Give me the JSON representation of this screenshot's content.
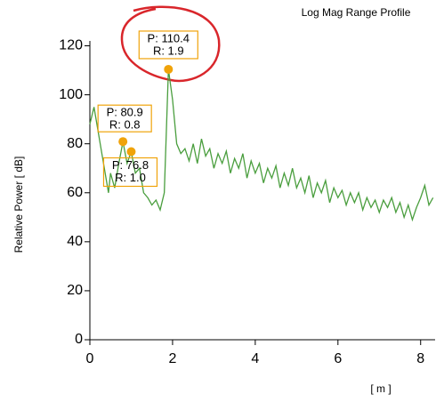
{
  "chart_data": {
    "type": "line",
    "title": "Log Mag Range Profile",
    "y_label": "Relative Power [ dB]",
    "x_label": "[ m ]",
    "xlim": [
      0,
      8.35
    ],
    "ylim": [
      0,
      122
    ],
    "xticks": [
      0,
      2,
      4,
      6,
      8
    ],
    "yticks": [
      0,
      20,
      40,
      60,
      80,
      100,
      120
    ],
    "series": [
      {
        "color": "#4a9e3e",
        "x": [
          0.0,
          0.1,
          0.2,
          0.3,
          0.4,
          0.45,
          0.5,
          0.6,
          0.7,
          0.8,
          0.9,
          1.0,
          1.1,
          1.2,
          1.3,
          1.4,
          1.5,
          1.6,
          1.7,
          1.8,
          1.9,
          2.0,
          2.1,
          2.2,
          2.3,
          2.4,
          2.5,
          2.6,
          2.7,
          2.8,
          2.9,
          3.0,
          3.1,
          3.2,
          3.3,
          3.4,
          3.5,
          3.6,
          3.7,
          3.8,
          3.9,
          4.0,
          4.1,
          4.2,
          4.3,
          4.4,
          4.5,
          4.6,
          4.7,
          4.8,
          4.9,
          5.0,
          5.1,
          5.2,
          5.3,
          5.4,
          5.5,
          5.6,
          5.7,
          5.8,
          5.9,
          6.0,
          6.1,
          6.2,
          6.3,
          6.4,
          6.5,
          6.6,
          6.7,
          6.8,
          6.9,
          7.0,
          7.1,
          7.2,
          7.3,
          7.4,
          7.5,
          7.6,
          7.7,
          7.8,
          7.9,
          8.0,
          8.1,
          8.2,
          8.3
        ],
        "values": [
          88,
          95,
          85,
          75,
          65,
          60,
          68,
          62,
          72,
          80.9,
          72,
          76.8,
          68,
          70,
          60,
          58,
          55,
          57,
          53,
          60,
          110.4,
          98,
          80,
          76,
          78,
          73,
          80,
          72,
          82,
          75,
          78,
          70,
          76,
          72,
          77,
          68,
          74,
          70,
          76,
          66,
          73,
          68,
          72,
          64,
          70,
          66,
          71,
          62,
          68,
          63,
          70,
          62,
          66,
          60,
          67,
          58,
          64,
          60,
          65,
          56,
          62,
          58,
          61,
          55,
          60,
          56,
          60,
          53,
          58,
          54,
          57,
          52,
          57,
          54,
          58,
          52,
          56,
          50,
          55,
          49,
          54,
          58,
          63,
          55,
          58
        ]
      }
    ],
    "peaks": [
      {
        "x": 1.9,
        "y": 110.4,
        "p_label": "P: 110.4",
        "r_label": "R: 1.9"
      },
      {
        "x": 0.8,
        "y": 80.9,
        "p_label": "P: 80.9",
        "r_label": "R: 0.8"
      },
      {
        "x": 1.0,
        "y": 76.8,
        "p_label": "P: 76.8",
        "r_label": "R: 1.0"
      }
    ],
    "marker_color": "#f0a30a"
  }
}
